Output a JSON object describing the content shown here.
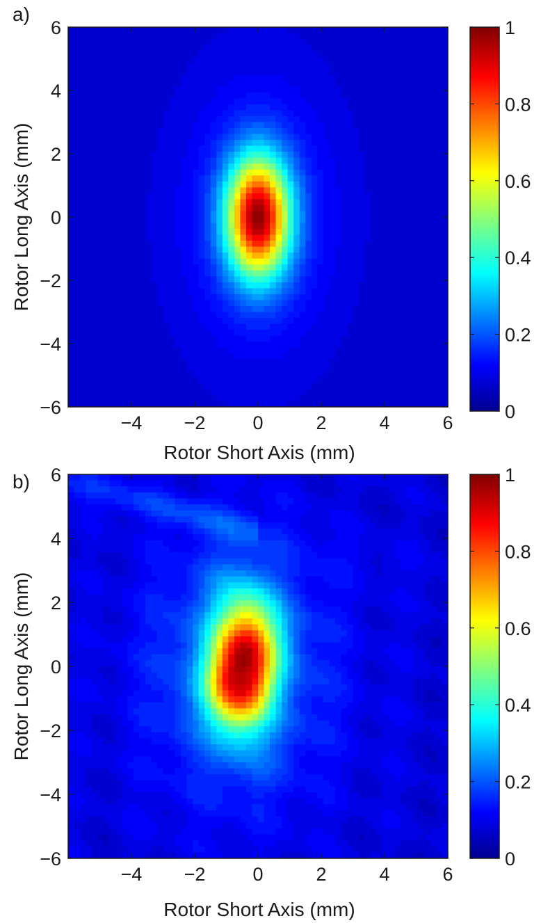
{
  "chart_data": [
    {
      "type": "heatmap",
      "panel_label": "a)",
      "xlabel": "Rotor Short Axis (mm)",
      "ylabel": "Rotor Long Axis (mm)",
      "xlim": [
        -6,
        6
      ],
      "ylim": [
        -6,
        6
      ],
      "xticks": [
        -4,
        -2,
        0,
        2,
        4,
        6
      ],
      "yticks": [
        6,
        4,
        2,
        0,
        -2,
        -4,
        -6
      ],
      "xtick_labels": [
        "−4",
        "−2",
        "0",
        "2",
        "4",
        "6"
      ],
      "ytick_labels": [
        "6",
        "4",
        "2",
        "0",
        "−2",
        "−4",
        "−6"
      ],
      "colorbar": {
        "range": [
          0,
          1
        ],
        "ticks": [
          1,
          0.8,
          0.6,
          0.4,
          0.2,
          0
        ],
        "tick_labels": [
          "1",
          "0.8",
          "0.6",
          "0.4",
          "0.2",
          "0"
        ],
        "colormap": "jet",
        "levels": 50
      },
      "peak": {
        "x": 0,
        "y": 0,
        "value": 1
      },
      "profile": {
        "shape": "gaussian",
        "sigma_x_mm": 0.68,
        "sigma_y_mm": 1.3
      },
      "grid": false
    },
    {
      "type": "heatmap",
      "panel_label": "b)",
      "xlabel": "Rotor Short Axis (mm)",
      "ylabel": "Rotor Long Axis (mm)",
      "xlim": [
        -6,
        6
      ],
      "ylim": [
        -6,
        6
      ],
      "xticks": [
        -4,
        -2,
        0,
        2,
        4,
        6
      ],
      "yticks": [
        6,
        4,
        2,
        0,
        -2,
        -4,
        -6
      ],
      "xtick_labels": [
        "−4",
        "−2",
        "0",
        "2",
        "4",
        "6"
      ],
      "ytick_labels": [
        "6",
        "4",
        "2",
        "0",
        "−2",
        "−4",
        "−6"
      ],
      "colorbar": {
        "range": [
          0,
          1
        ],
        "ticks": [
          1,
          0.8,
          0.6,
          0.4,
          0.2,
          0
        ],
        "tick_labels": [
          "1",
          "0.8",
          "0.6",
          "0.4",
          "0.2",
          "0"
        ],
        "colormap": "jet",
        "levels": 50
      },
      "peak": {
        "x": -0.5,
        "y": 0.4,
        "value": 1
      },
      "profile": {
        "shape": "irregular-measured",
        "sigma_x_mm": 0.7,
        "sigma_y_mm": 1.35
      },
      "grid": false
    }
  ]
}
